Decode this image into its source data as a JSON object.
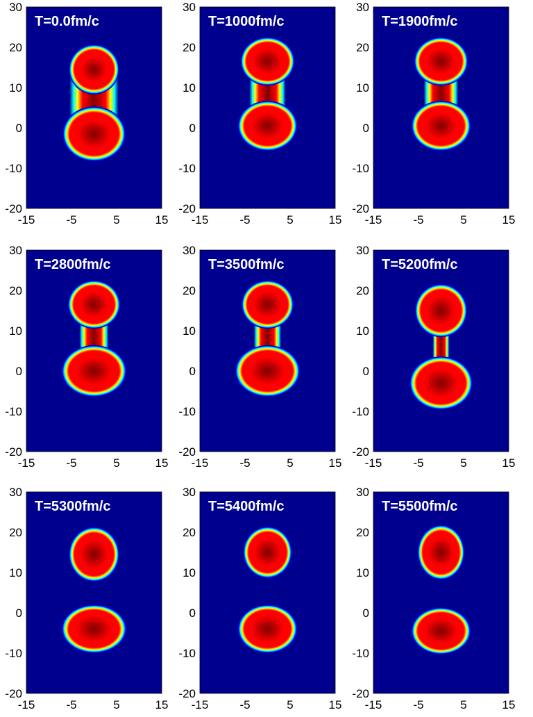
{
  "colors": {
    "background": "#00008f",
    "colormap": [
      "#00008f",
      "#0000ff",
      "#00ffff",
      "#ffff00",
      "#ff0000",
      "#800000"
    ]
  },
  "chart_data": [
    {
      "type": "heatmap",
      "title": "T=0.0fm/c",
      "xlabel": "",
      "ylabel": "",
      "xlim": [
        -15,
        15
      ],
      "ylim": [
        -20,
        30
      ],
      "xticks": [
        -15,
        -5,
        5,
        15
      ],
      "yticks": [
        -20,
        -10,
        0,
        10,
        20,
        30
      ],
      "grid": false,
      "shape": "connected",
      "fragments": [
        {
          "center": [
            0,
            14.5
          ],
          "radius_x": 5.6,
          "radius_y": 6.2,
          "intensity": 0.78
        },
        {
          "center": [
            0,
            -1.5
          ],
          "radius_x": 7.0,
          "radius_y": 6.8,
          "intensity": 0.82
        }
      ],
      "neck": {
        "y": 7.0,
        "half_width": 4.2
      }
    },
    {
      "type": "heatmap",
      "title": "T=1000fm/c",
      "xlabel": "",
      "ylabel": "",
      "xlim": [
        -15,
        15
      ],
      "ylim": [
        -20,
        30
      ],
      "xticks": [
        -15,
        -5,
        5,
        15
      ],
      "yticks": [
        -20,
        -10,
        0,
        10,
        20,
        30
      ],
      "grid": false,
      "shape": "connected",
      "fragments": [
        {
          "center": [
            0,
            16.5
          ],
          "radius_x": 6.0,
          "radius_y": 6.0,
          "intensity": 0.85
        },
        {
          "center": [
            0,
            0.5
          ],
          "radius_x": 6.6,
          "radius_y": 6.2,
          "intensity": 0.82
        }
      ],
      "neck": {
        "y": 8.0,
        "half_width": 2.8
      }
    },
    {
      "type": "heatmap",
      "title": "T=1900fm/c",
      "xlabel": "",
      "ylabel": "",
      "xlim": [
        -15,
        15
      ],
      "ylim": [
        -20,
        30
      ],
      "xticks": [
        -15,
        -5,
        5,
        15
      ],
      "yticks": [
        -20,
        -10,
        0,
        10,
        20,
        30
      ],
      "grid": false,
      "shape": "connected",
      "fragments": [
        {
          "center": [
            0,
            16.5
          ],
          "radius_x": 6.0,
          "radius_y": 6.0,
          "intensity": 0.85
        },
        {
          "center": [
            0,
            0.5
          ],
          "radius_x": 6.6,
          "radius_y": 6.2,
          "intensity": 0.82
        }
      ],
      "neck": {
        "y": 8.0,
        "half_width": 2.6
      }
    },
    {
      "type": "heatmap",
      "title": "T=2800fm/c",
      "xlabel": "",
      "ylabel": "",
      "xlim": [
        -15,
        15
      ],
      "ylim": [
        -20,
        30
      ],
      "xticks": [
        -15,
        -5,
        5,
        15
      ],
      "yticks": [
        -20,
        -10,
        0,
        10,
        20,
        30
      ],
      "grid": false,
      "shape": "connected",
      "fragments": [
        {
          "center": [
            0,
            16.5
          ],
          "radius_x": 5.8,
          "radius_y": 6.0,
          "intensity": 0.85
        },
        {
          "center": [
            0,
            0.0
          ],
          "radius_x": 7.2,
          "radius_y": 6.4,
          "intensity": 0.85
        }
      ],
      "neck": {
        "y": 7.5,
        "half_width": 2.0
      }
    },
    {
      "type": "heatmap",
      "title": "T=3500fm/c",
      "xlabel": "",
      "ylabel": "",
      "xlim": [
        -15,
        15
      ],
      "ylim": [
        -20,
        30
      ],
      "xticks": [
        -15,
        -5,
        5,
        15
      ],
      "yticks": [
        -20,
        -10,
        0,
        10,
        20,
        30
      ],
      "grid": false,
      "shape": "connected",
      "fragments": [
        {
          "center": [
            0,
            16.5
          ],
          "radius_x": 5.8,
          "radius_y": 6.0,
          "intensity": 0.85
        },
        {
          "center": [
            0,
            0.0
          ],
          "radius_x": 7.2,
          "radius_y": 6.4,
          "intensity": 0.85
        }
      ],
      "neck": {
        "y": 7.5,
        "half_width": 1.8
      }
    },
    {
      "type": "heatmap",
      "title": "T=5200fm/c",
      "xlabel": "",
      "ylabel": "",
      "xlim": [
        -15,
        15
      ],
      "ylim": [
        -20,
        30
      ],
      "xticks": [
        -15,
        -5,
        5,
        15
      ],
      "yticks": [
        -20,
        -10,
        0,
        10,
        20,
        30
      ],
      "grid": false,
      "shape": "connected",
      "fragments": [
        {
          "center": [
            0,
            15.0
          ],
          "radius_x": 5.8,
          "radius_y": 6.6,
          "intensity": 0.88
        },
        {
          "center": [
            0,
            -3.0
          ],
          "radius_x": 7.0,
          "radius_y": 6.6,
          "intensity": 0.88
        }
      ],
      "neck": {
        "y": 5.0,
        "half_width": 0.6
      }
    },
    {
      "type": "heatmap",
      "title": "T=5300fm/c",
      "xlabel": "",
      "ylabel": "",
      "xlim": [
        -15,
        15
      ],
      "ylim": [
        -20,
        30
      ],
      "xticks": [
        -15,
        -5,
        5,
        15
      ],
      "yticks": [
        -20,
        -10,
        0,
        10,
        20,
        30
      ],
      "grid": false,
      "shape": "separated",
      "fragments": [
        {
          "center": [
            0,
            14.5
          ],
          "radius_x": 5.6,
          "radius_y": 6.8,
          "intensity": 0.88
        },
        {
          "center": [
            0,
            -4.0
          ],
          "radius_x": 7.2,
          "radius_y": 6.0,
          "intensity": 0.9
        }
      ],
      "neck": {
        "y": 6.0,
        "half_width": 0.0
      }
    },
    {
      "type": "heatmap",
      "title": "T=5400fm/c",
      "xlabel": "",
      "ylabel": "",
      "xlim": [
        -15,
        15
      ],
      "ylim": [
        -20,
        30
      ],
      "xticks": [
        -15,
        -5,
        5,
        15
      ],
      "yticks": [
        -20,
        -10,
        0,
        10,
        20,
        30
      ],
      "grid": false,
      "shape": "separated",
      "fragments": [
        {
          "center": [
            0,
            15.0
          ],
          "radius_x": 5.4,
          "radius_y": 6.4,
          "intensity": 0.88
        },
        {
          "center": [
            0,
            -4.0
          ],
          "radius_x": 6.6,
          "radius_y": 6.0,
          "intensity": 0.9
        }
      ],
      "neck": {
        "y": 6.0,
        "half_width": 0.0
      }
    },
    {
      "type": "heatmap",
      "title": "T=5500fm/c",
      "xlabel": "",
      "ylabel": "",
      "xlim": [
        -15,
        15
      ],
      "ylim": [
        -20,
        30
      ],
      "xticks": [
        -15,
        -5,
        5,
        15
      ],
      "yticks": [
        -20,
        -10,
        0,
        10,
        20,
        30
      ],
      "grid": false,
      "shape": "separated",
      "fragments": [
        {
          "center": [
            0,
            15.0
          ],
          "radius_x": 5.2,
          "radius_y": 6.8,
          "intensity": 0.88
        },
        {
          "center": [
            0,
            -4.5
          ],
          "radius_x": 6.6,
          "radius_y": 5.8,
          "intensity": 0.9
        }
      ],
      "neck": {
        "y": 6.0,
        "half_width": 0.0
      }
    }
  ]
}
